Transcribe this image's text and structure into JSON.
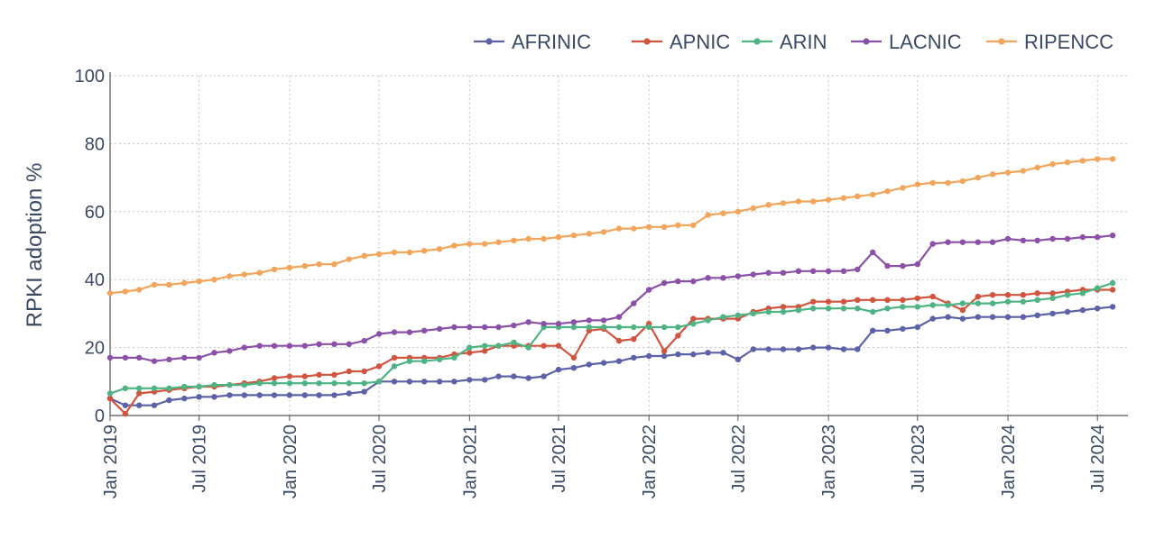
{
  "chart_data": {
    "type": "line",
    "ylabel": "RPKI adoption %",
    "ylim": [
      0,
      100
    ],
    "xlim": [
      "2019-01-01",
      "2024-09-01"
    ],
    "yticks": [
      0,
      20,
      40,
      60,
      80,
      100
    ],
    "xticks": [
      {
        "date": "2019-01-01",
        "label": "Jan 2019"
      },
      {
        "date": "2019-07-01",
        "label": "Jul 2019"
      },
      {
        "date": "2020-01-01",
        "label": "Jan 2020"
      },
      {
        "date": "2020-07-01",
        "label": "Jul 2020"
      },
      {
        "date": "2021-01-01",
        "label": "Jan 2021"
      },
      {
        "date": "2021-07-01",
        "label": "Jul 2021"
      },
      {
        "date": "2022-01-01",
        "label": "Jan 2022"
      },
      {
        "date": "2022-07-01",
        "label": "Jul 2022"
      },
      {
        "date": "2023-01-01",
        "label": "Jan 2023"
      },
      {
        "date": "2023-07-01",
        "label": "Jul 2023"
      },
      {
        "date": "2024-01-01",
        "label": "Jan 2024"
      },
      {
        "date": "2024-07-01",
        "label": "Jul 2024"
      }
    ],
    "grid": true,
    "legend_position": "top-right",
    "x": [
      "2019-01",
      "2019-02",
      "2019-03",
      "2019-04",
      "2019-05",
      "2019-06",
      "2019-07",
      "2019-08",
      "2019-09",
      "2019-10",
      "2019-11",
      "2019-12",
      "2020-01",
      "2020-02",
      "2020-03",
      "2020-04",
      "2020-05",
      "2020-06",
      "2020-07",
      "2020-08",
      "2020-09",
      "2020-10",
      "2020-11",
      "2020-12",
      "2021-01",
      "2021-02",
      "2021-03",
      "2021-04",
      "2021-05",
      "2021-06",
      "2021-07",
      "2021-08",
      "2021-09",
      "2021-10",
      "2021-11",
      "2021-12",
      "2022-01",
      "2022-02",
      "2022-03",
      "2022-04",
      "2022-05",
      "2022-06",
      "2022-07",
      "2022-08",
      "2022-09",
      "2022-10",
      "2022-11",
      "2022-12",
      "2023-01",
      "2023-02",
      "2023-03",
      "2023-04",
      "2023-05",
      "2023-06",
      "2023-07",
      "2023-08",
      "2023-09",
      "2023-10",
      "2023-11",
      "2023-12",
      "2024-01",
      "2024-02",
      "2024-03",
      "2024-04",
      "2024-05",
      "2024-06",
      "2024-07",
      "2024-08"
    ],
    "series": [
      {
        "name": "AFRINIC",
        "color": "#5c61a8",
        "values": [
          5,
          3,
          3,
          3,
          4.5,
          5,
          5.5,
          5.5,
          6,
          6,
          6,
          6,
          6,
          6,
          6,
          6,
          6.5,
          7,
          10,
          10,
          10,
          10,
          10,
          10,
          10.5,
          10.5,
          11.5,
          11.5,
          11,
          11.5,
          13.5,
          14,
          15,
          15.5,
          16,
          17,
          17.5,
          17.5,
          18,
          18,
          18.5,
          18.5,
          16.5,
          19.5,
          19.5,
          19.5,
          19.5,
          20,
          20,
          19.5,
          19.5,
          25,
          25,
          25.5,
          26,
          28.5,
          29,
          28.5,
          29,
          29,
          29,
          29,
          29.5,
          30,
          30.5,
          31,
          31.5,
          32
        ]
      },
      {
        "name": "APNIC",
        "color": "#d1543e",
        "values": [
          5,
          0.5,
          6.5,
          7,
          7.5,
          8,
          8.5,
          8.5,
          9,
          9.5,
          10,
          11,
          11.5,
          11.5,
          12,
          12,
          13,
          13,
          14.5,
          17,
          17,
          17,
          17,
          18,
          18.5,
          19,
          20.5,
          20.5,
          20.5,
          20.5,
          20.5,
          17,
          25,
          25.5,
          22,
          22.5,
          27,
          19,
          23.5,
          28.5,
          28.5,
          28.5,
          28.5,
          30.5,
          31.5,
          32,
          32,
          33.5,
          33.5,
          33.5,
          34,
          34,
          34,
          34,
          34.5,
          35,
          33,
          31,
          35,
          35.5,
          35.5,
          35.5,
          36,
          36,
          36.5,
          37,
          37,
          37
        ]
      },
      {
        "name": "ARIN",
        "color": "#4fb384",
        "values": [
          6.5,
          8,
          8,
          8,
          8,
          8.5,
          8.5,
          9,
          9,
          9,
          9.5,
          9.5,
          9.5,
          9.5,
          9.5,
          9.5,
          9.5,
          9.5,
          10,
          14.5,
          16,
          16,
          16.5,
          17,
          20,
          20.5,
          20.5,
          21.5,
          20,
          26,
          26,
          26,
          26,
          26,
          26,
          26,
          26,
          26,
          26,
          27,
          28,
          29,
          29.5,
          30,
          30.5,
          30.5,
          31,
          31.5,
          31.5,
          31.5,
          31.5,
          30.5,
          31.5,
          32,
          32,
          32.5,
          32.5,
          33,
          33,
          33,
          33.5,
          33.5,
          34,
          34.5,
          35.5,
          36,
          37.5,
          39
        ]
      },
      {
        "name": "LACNIC",
        "color": "#8b50a8",
        "values": [
          17,
          17,
          17,
          16,
          16.5,
          17,
          17,
          18.5,
          19,
          20,
          20.5,
          20.5,
          20.5,
          20.5,
          21,
          21,
          21,
          22,
          24,
          24.5,
          24.5,
          25,
          25.5,
          26,
          26,
          26,
          26,
          26.5,
          27.5,
          27,
          27,
          27.5,
          28,
          28,
          29,
          33,
          37,
          39,
          39.5,
          39.5,
          40.5,
          40.5,
          41,
          41.5,
          42,
          42,
          42.5,
          42.5,
          42.5,
          42.5,
          43,
          48,
          44,
          44,
          44.5,
          50.5,
          51,
          51,
          51,
          51,
          52,
          51.5,
          51.5,
          52,
          52,
          52.5,
          52.5,
          53
        ]
      },
      {
        "name": "RIPENCC",
        "color": "#f2a55b",
        "values": [
          36,
          36.5,
          37,
          38.5,
          38.5,
          39,
          39.5,
          40,
          41,
          41.5,
          42,
          43,
          43.5,
          44,
          44.5,
          44.5,
          46,
          47,
          47.5,
          48,
          48,
          48.5,
          49,
          50,
          50.5,
          50.5,
          51,
          51.5,
          52,
          52,
          52.5,
          53,
          53.5,
          54,
          55,
          55,
          55.5,
          55.5,
          56,
          56,
          59,
          59.5,
          60,
          61,
          62,
          62.5,
          63,
          63,
          63.5,
          64,
          64.5,
          65,
          66,
          67,
          68,
          68.5,
          68.5,
          69,
          70,
          71,
          71.5,
          72,
          73,
          74,
          74.5,
          75,
          75.5,
          75.5
        ]
      }
    ]
  }
}
